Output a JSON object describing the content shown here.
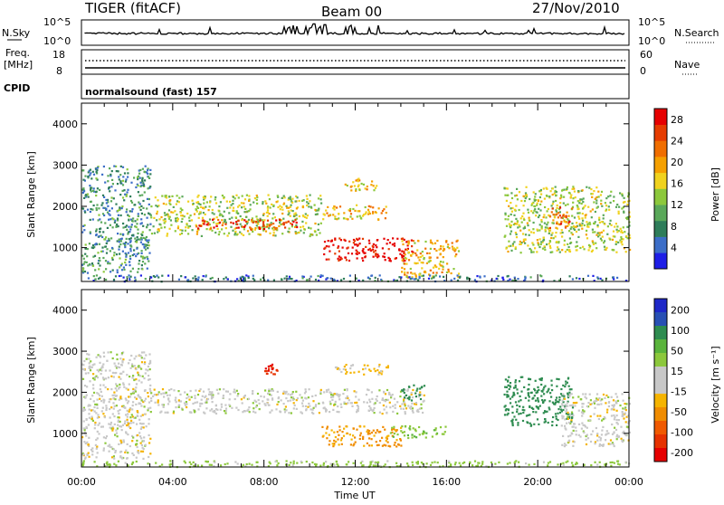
{
  "header": {
    "radar": "TIGER (fitACF)",
    "beam": "Beam 00",
    "date": "27/Nov/2010"
  },
  "top_panels": {
    "nsky_label": "N.Sky",
    "nsky_ticks": [
      "10^5",
      "10^0"
    ],
    "nsearch_label": "N.Search",
    "nsearch_ticks": [
      "10^5",
      "10^0"
    ],
    "freq_label": "Freq.",
    "freq_unit": "[MHz]",
    "freq_ticks": [
      "18",
      "8"
    ],
    "nave_label": "Nave",
    "nave_ticks": [
      "60",
      "0"
    ],
    "cpid_label": "CPID",
    "cpid_text": "normalsound (fast)  157"
  },
  "chart_data": [
    {
      "type": "heatmap",
      "title": "",
      "xlabel": "Time UT",
      "ylabel": "Slant Range [km]",
      "x_ticks": [
        "00:00",
        "04:00",
        "08:00",
        "12:00",
        "16:00",
        "20:00",
        "00:00"
      ],
      "xlim": [
        0,
        24
      ],
      "y_ticks": [
        "1000",
        "2000",
        "3000",
        "4000"
      ],
      "ylim": [
        180,
        4500
      ],
      "colorbar": {
        "label": "Power [dB]",
        "ticks": [
          "4",
          "8",
          "12",
          "16",
          "20",
          "24",
          "28"
        ],
        "range": [
          0,
          30
        ],
        "colors": [
          "#1e1ee6",
          "#3c6ec8",
          "#2e7d5a",
          "#5aa85a",
          "#8cc83c",
          "#f0d21e",
          "#f5a000",
          "#f06e00",
          "#e63c00",
          "#e60000"
        ]
      },
      "regions": [
        {
          "t0": 0.0,
          "t1": 3.0,
          "r0": 400,
          "r1": 3000,
          "level": 8
        },
        {
          "t0": 3.0,
          "t1": 10.5,
          "r0": 1300,
          "r1": 2300,
          "level": 14
        },
        {
          "t0": 5.0,
          "t1": 9.5,
          "r0": 1450,
          "r1": 1700,
          "level": 26
        },
        {
          "t0": 10.5,
          "t1": 14.5,
          "r0": 700,
          "r1": 1250,
          "level": 29
        },
        {
          "t0": 10.5,
          "t1": 13.5,
          "r0": 1700,
          "r1": 2050,
          "level": 18
        },
        {
          "t0": 11.5,
          "t1": 13.0,
          "r0": 2400,
          "r1": 2700,
          "level": 18
        },
        {
          "t0": 14.0,
          "t1": 16.5,
          "r0": 300,
          "r1": 1200,
          "level": 18
        },
        {
          "t0": 18.5,
          "t1": 24.0,
          "r0": 900,
          "r1": 2500,
          "level": 14
        },
        {
          "t0": 20.5,
          "t1": 21.5,
          "r0": 1500,
          "r1": 2000,
          "level": 24
        },
        {
          "t0": 0.0,
          "t1": 24.0,
          "r0": 200,
          "r1": 350,
          "level": 6
        }
      ]
    },
    {
      "type": "heatmap",
      "title": "",
      "xlabel": "Time UT",
      "ylabel": "Slant Range [km]",
      "x_ticks": [
        "00:00",
        "04:00",
        "08:00",
        "12:00",
        "16:00",
        "20:00",
        "00:00"
      ],
      "xlim": [
        0,
        24
      ],
      "y_ticks": [
        "1000",
        "2000",
        "3000",
        "4000"
      ],
      "ylim": [
        180,
        4500
      ],
      "colorbar": {
        "label": "Velocity [m s⁻¹]",
        "ticks": [
          "200",
          "100",
          "50",
          "15",
          "-15",
          "-50",
          "-100",
          "-200"
        ],
        "colors": [
          "#1e28c8",
          "#2850b4",
          "#2e8c50",
          "#5ab43c",
          "#8cc83c",
          "#c8c8c8",
          "#c8c8c8",
          "#f5b400",
          "#f08c00",
          "#f05a00",
          "#e63200",
          "#e60000"
        ]
      },
      "regions": [
        {
          "t0": 0.0,
          "t1": 3.0,
          "r0": 400,
          "r1": 3000,
          "vel": 0
        },
        {
          "t0": 3.0,
          "t1": 15.0,
          "r0": 1500,
          "r1": 2100,
          "vel": 0
        },
        {
          "t0": 10.5,
          "t1": 14.0,
          "r0": 700,
          "r1": 1200,
          "vel": -60
        },
        {
          "t0": 13.5,
          "t1": 16.0,
          "r0": 900,
          "r1": 1200,
          "vel": 40
        },
        {
          "t0": 11.0,
          "t1": 13.5,
          "r0": 2450,
          "r1": 2700,
          "vel": -20
        },
        {
          "t0": 8.0,
          "t1": 8.6,
          "r0": 2450,
          "r1": 2700,
          "vel": -250
        },
        {
          "t0": 14.0,
          "t1": 15.0,
          "r0": 1800,
          "r1": 2200,
          "vel": 150
        },
        {
          "t0": 18.5,
          "t1": 21.5,
          "r0": 1200,
          "r1": 2400,
          "vel": 120
        },
        {
          "t0": 21.0,
          "t1": 24.0,
          "r0": 700,
          "r1": 2000,
          "vel": 0
        },
        {
          "t0": 0.0,
          "t1": 24.0,
          "r0": 200,
          "r1": 350,
          "vel": 30
        }
      ]
    }
  ]
}
